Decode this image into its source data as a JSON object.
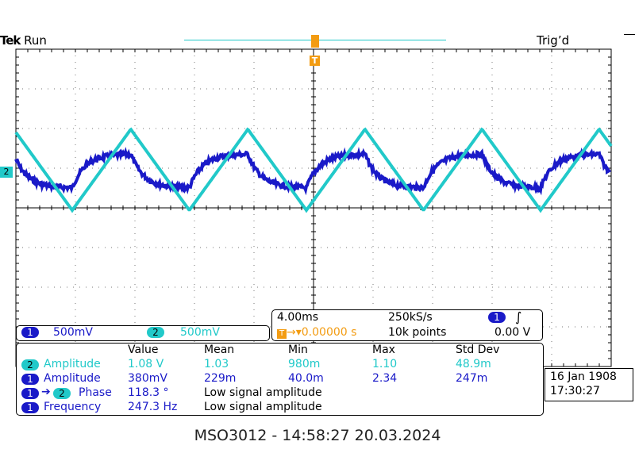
{
  "header": {
    "brand": "Tek",
    "run_state": "Run",
    "trigger_status": "Trig’d"
  },
  "trigger": {
    "position_marker": "T",
    "ch2_ref_label": "2"
  },
  "channels": [
    {
      "number": "1",
      "scale": "500mV"
    },
    {
      "number": "2",
      "scale": "500mV"
    }
  ],
  "timebase": {
    "time_per_div": "4.00ms",
    "sample_rate": "250kS/s",
    "trigger_offset": "0.00000 s",
    "record_length": "10k points",
    "trigger_source": "1",
    "trigger_slope_icon": "rising-edge-icon",
    "trigger_level": "0.00 V"
  },
  "measurements": {
    "headers": [
      "Value",
      "Mean",
      "Min",
      "Max",
      "Std Dev"
    ],
    "rows": [
      {
        "ch": "2",
        "name": "Amplitude",
        "value": "1.08 V",
        "mean": "1.03",
        "min": "980m",
        "max": "1.10",
        "std": "48.9m"
      },
      {
        "ch": "1",
        "name": "Amplitude",
        "value": "380mV",
        "mean": "229m",
        "min": "40.0m",
        "max": "2.34",
        "std": "247m"
      },
      {
        "ch": "1",
        "ch_to": "2",
        "name": "Phase",
        "value": "118.3 °",
        "note": "Low signal amplitude"
      },
      {
        "ch": "1",
        "name": "Frequency",
        "value": "247.3 Hz",
        "note": "Low signal amplitude"
      }
    ]
  },
  "datetime": {
    "date": "16 Jan  1908",
    "time": "17:30:27"
  },
  "caption": "MSO3012 - 14:58:27   20.03.2024",
  "colors": {
    "ch1": "#1a1ac8",
    "ch2": "#21c9c9",
    "trigger": "#f39c12"
  }
}
